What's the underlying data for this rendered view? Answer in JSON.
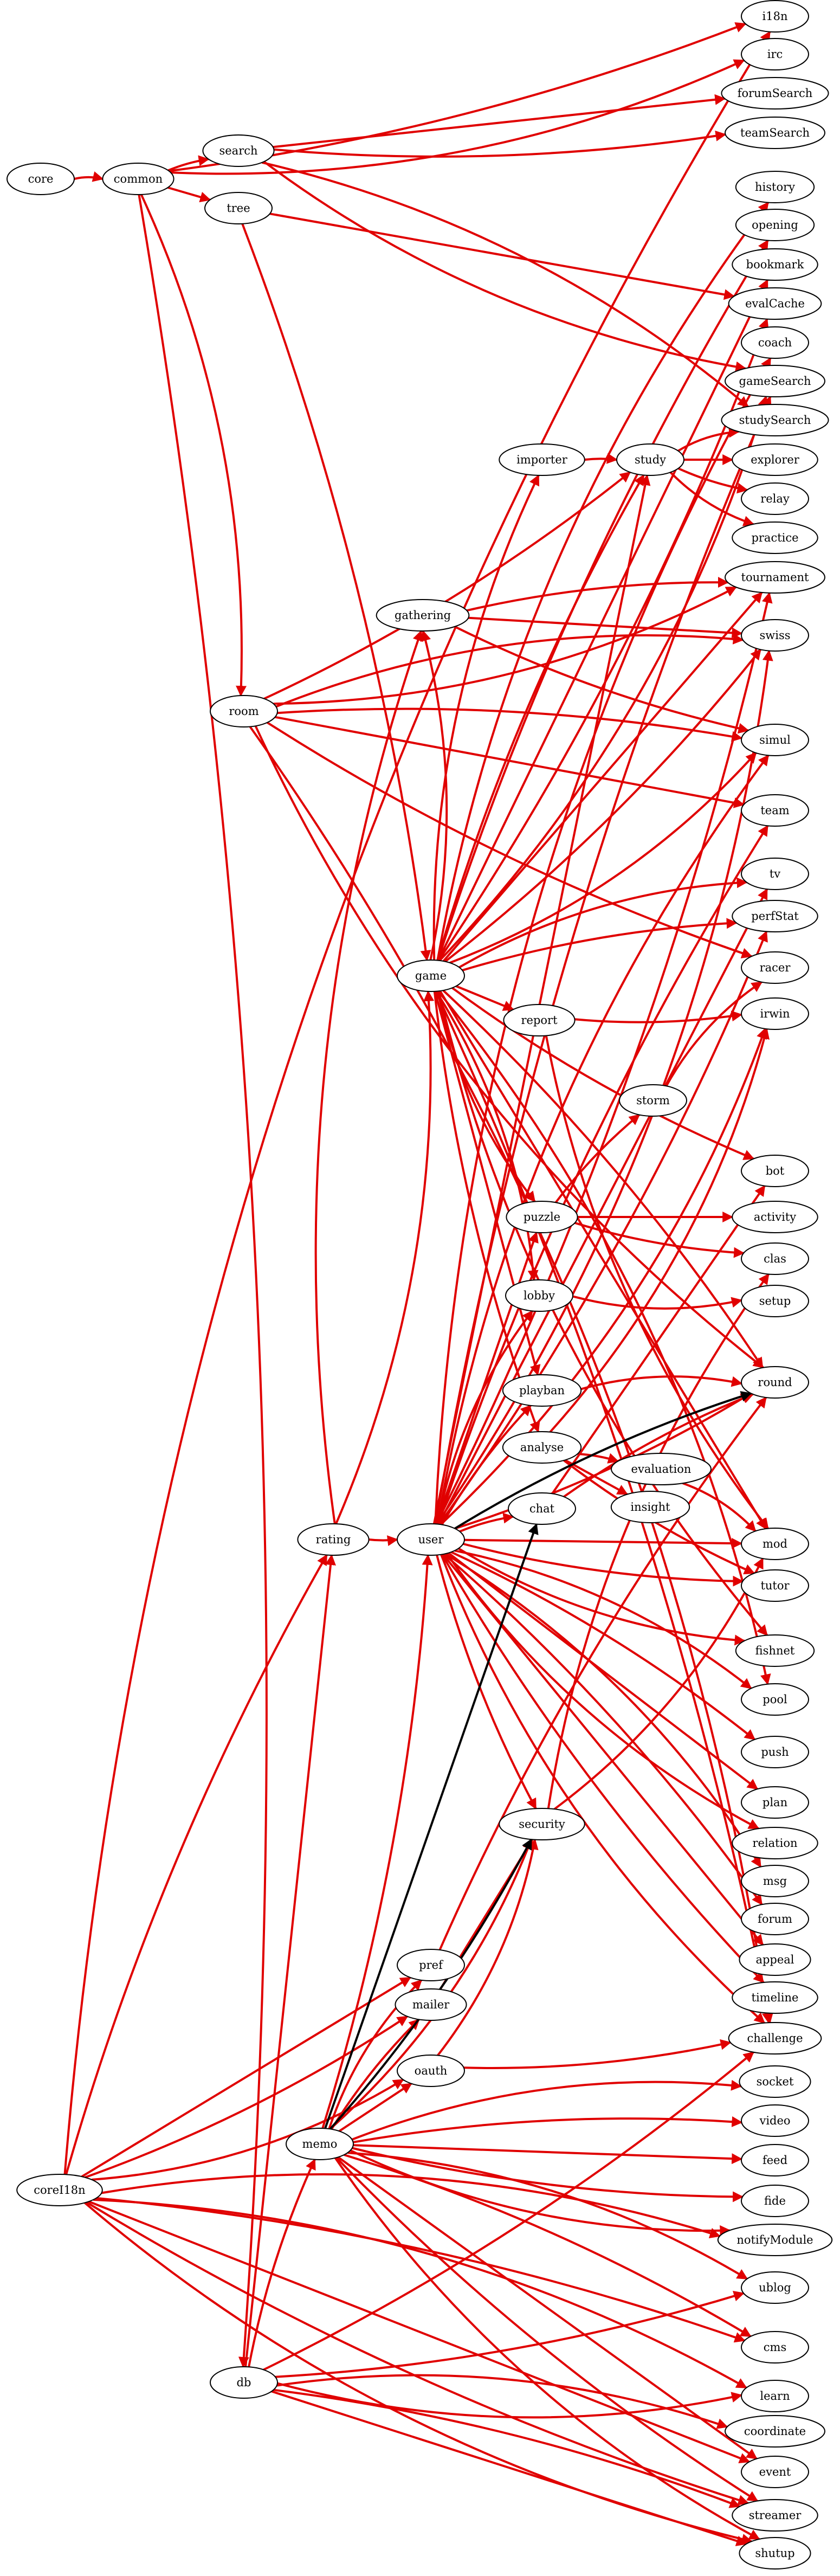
{
  "colors": {
    "dep_edge": "#e00000",
    "plain_edge": "#000000",
    "node_stroke": "#000000",
    "node_fill": "#ffffff"
  },
  "nodes": [
    {
      "id": "core",
      "label": "core"
    },
    {
      "id": "common",
      "label": "common"
    },
    {
      "id": "search",
      "label": "search"
    },
    {
      "id": "tree",
      "label": "tree"
    },
    {
      "id": "i18n",
      "label": "i18n"
    },
    {
      "id": "irc",
      "label": "irc"
    },
    {
      "id": "forumSearch",
      "label": "forumSearch"
    },
    {
      "id": "teamSearch",
      "label": "teamSearch"
    },
    {
      "id": "history",
      "label": "history"
    },
    {
      "id": "opening",
      "label": "opening"
    },
    {
      "id": "bookmark",
      "label": "bookmark"
    },
    {
      "id": "evalCache",
      "label": "evalCache"
    },
    {
      "id": "coach",
      "label": "coach"
    },
    {
      "id": "gameSearch",
      "label": "gameSearch"
    },
    {
      "id": "studySearch",
      "label": "studySearch"
    },
    {
      "id": "explorer",
      "label": "explorer"
    },
    {
      "id": "relay",
      "label": "relay"
    },
    {
      "id": "practice",
      "label": "practice"
    },
    {
      "id": "importer",
      "label": "importer"
    },
    {
      "id": "study",
      "label": "study"
    },
    {
      "id": "tournament",
      "label": "tournament"
    },
    {
      "id": "gathering",
      "label": "gathering"
    },
    {
      "id": "swiss",
      "label": "swiss"
    },
    {
      "id": "room",
      "label": "room"
    },
    {
      "id": "simul",
      "label": "simul"
    },
    {
      "id": "team",
      "label": "team"
    },
    {
      "id": "tv",
      "label": "tv"
    },
    {
      "id": "perfStat",
      "label": "perfStat"
    },
    {
      "id": "game",
      "label": "game"
    },
    {
      "id": "racer",
      "label": "racer"
    },
    {
      "id": "report",
      "label": "report"
    },
    {
      "id": "irwin",
      "label": "irwin"
    },
    {
      "id": "storm",
      "label": "storm"
    },
    {
      "id": "bot",
      "label": "bot"
    },
    {
      "id": "puzzle",
      "label": "puzzle"
    },
    {
      "id": "activity",
      "label": "activity"
    },
    {
      "id": "clas",
      "label": "clas"
    },
    {
      "id": "lobby",
      "label": "lobby"
    },
    {
      "id": "setup",
      "label": "setup"
    },
    {
      "id": "round",
      "label": "round"
    },
    {
      "id": "playban",
      "label": "playban"
    },
    {
      "id": "analyse",
      "label": "analyse"
    },
    {
      "id": "evaluation",
      "label": "evaluation"
    },
    {
      "id": "insight",
      "label": "insight"
    },
    {
      "id": "chat",
      "label": "chat"
    },
    {
      "id": "rating",
      "label": "rating"
    },
    {
      "id": "user",
      "label": "user"
    },
    {
      "id": "mod",
      "label": "mod"
    },
    {
      "id": "tutor",
      "label": "tutor"
    },
    {
      "id": "fishnet",
      "label": "fishnet"
    },
    {
      "id": "pool",
      "label": "pool"
    },
    {
      "id": "push",
      "label": "push"
    },
    {
      "id": "plan",
      "label": "plan"
    },
    {
      "id": "security",
      "label": "security"
    },
    {
      "id": "relation",
      "label": "relation"
    },
    {
      "id": "msg",
      "label": "msg"
    },
    {
      "id": "forum",
      "label": "forum"
    },
    {
      "id": "pref",
      "label": "pref"
    },
    {
      "id": "appeal",
      "label": "appeal"
    },
    {
      "id": "mailer",
      "label": "mailer"
    },
    {
      "id": "timeline",
      "label": "timeline"
    },
    {
      "id": "challenge",
      "label": "challenge"
    },
    {
      "id": "oauth",
      "label": "oauth"
    },
    {
      "id": "socket",
      "label": "socket"
    },
    {
      "id": "video",
      "label": "video"
    },
    {
      "id": "memo",
      "label": "memo"
    },
    {
      "id": "feed",
      "label": "feed"
    },
    {
      "id": "coreI18n",
      "label": "coreI18n"
    },
    {
      "id": "fide",
      "label": "fide"
    },
    {
      "id": "notifyModule",
      "label": "notifyModule"
    },
    {
      "id": "ublog",
      "label": "ublog"
    },
    {
      "id": "cms",
      "label": "cms"
    },
    {
      "id": "db",
      "label": "db"
    },
    {
      "id": "learn",
      "label": "learn"
    },
    {
      "id": "coordinate",
      "label": "coordinate"
    },
    {
      "id": "event",
      "label": "event"
    },
    {
      "id": "streamer",
      "label": "streamer"
    },
    {
      "id": "shutup",
      "label": "shutup"
    }
  ],
  "edges": [
    [
      "core",
      "common"
    ],
    [
      "common",
      "search"
    ],
    [
      "common",
      "tree"
    ],
    [
      "common",
      "i18n"
    ],
    [
      "common",
      "irc"
    ],
    [
      "common",
      "room"
    ],
    [
      "common",
      "db"
    ],
    [
      "search",
      "forumSearch"
    ],
    [
      "search",
      "teamSearch"
    ],
    [
      "search",
      "gameSearch"
    ],
    [
      "search",
      "studySearch"
    ],
    [
      "tree",
      "game"
    ],
    [
      "tree",
      "evalCache"
    ],
    [
      "room",
      "study"
    ],
    [
      "room",
      "tournament"
    ],
    [
      "room",
      "swiss"
    ],
    [
      "room",
      "simul"
    ],
    [
      "room",
      "team"
    ],
    [
      "room",
      "racer"
    ],
    [
      "room",
      "round"
    ],
    [
      "room",
      "challenge"
    ],
    [
      "importer",
      "study"
    ],
    [
      "study",
      "explorer"
    ],
    [
      "study",
      "relay"
    ],
    [
      "study",
      "practice"
    ],
    [
      "study",
      "studySearch"
    ],
    [
      "gathering",
      "tournament"
    ],
    [
      "gathering",
      "swiss"
    ],
    [
      "gathering",
      "simul"
    ],
    [
      "game",
      "gathering"
    ],
    [
      "game",
      "history"
    ],
    [
      "game",
      "opening"
    ],
    [
      "game",
      "bookmark"
    ],
    [
      "game",
      "evalCache"
    ],
    [
      "game",
      "gameSearch"
    ],
    [
      "game",
      "importer"
    ],
    [
      "game",
      "study"
    ],
    [
      "game",
      "tournament"
    ],
    [
      "game",
      "swiss"
    ],
    [
      "game",
      "simul"
    ],
    [
      "game",
      "tv"
    ],
    [
      "game",
      "perfStat"
    ],
    [
      "game",
      "report"
    ],
    [
      "game",
      "bot"
    ],
    [
      "game",
      "puzzle"
    ],
    [
      "game",
      "lobby"
    ],
    [
      "game",
      "round"
    ],
    [
      "game",
      "playban"
    ],
    [
      "game",
      "analyse"
    ],
    [
      "game",
      "fishnet"
    ],
    [
      "game",
      "pool"
    ],
    [
      "game",
      "challenge"
    ],
    [
      "game",
      "mod"
    ],
    [
      "report",
      "irwin"
    ],
    [
      "report",
      "mod"
    ],
    [
      "storm",
      "racer"
    ],
    [
      "puzzle",
      "storm"
    ],
    [
      "puzzle",
      "activity"
    ],
    [
      "puzzle",
      "clas"
    ],
    [
      "lobby",
      "setup"
    ],
    [
      "playban",
      "round"
    ],
    [
      "analyse",
      "evaluation"
    ],
    [
      "analyse",
      "insight"
    ],
    [
      "analyse",
      "tutor"
    ],
    [
      "analyse",
      "irwin"
    ],
    [
      "evaluation",
      "mod"
    ],
    [
      "chat",
      "round"
    ],
    [
      "chat",
      "bot"
    ],
    [
      "rating",
      "user"
    ],
    [
      "rating",
      "game"
    ],
    [
      "rating",
      "gathering"
    ],
    [
      "user",
      "chat"
    ],
    [
      "user",
      "mod"
    ],
    [
      "user",
      "tutor"
    ],
    [
      "user",
      "fishnet"
    ],
    [
      "user",
      "pool"
    ],
    [
      "user",
      "push"
    ],
    [
      "user",
      "plan"
    ],
    [
      "user",
      "security"
    ],
    [
      "user",
      "relation"
    ],
    [
      "user",
      "msg"
    ],
    [
      "user",
      "forum"
    ],
    [
      "user",
      "appeal"
    ],
    [
      "user",
      "timeline"
    ],
    [
      "user",
      "challenge"
    ],
    [
      "user",
      "coach"
    ],
    [
      "user",
      "gameSearch"
    ],
    [
      "user",
      "study"
    ],
    [
      "user",
      "tournament"
    ],
    [
      "user",
      "swiss"
    ],
    [
      "user",
      "simul"
    ],
    [
      "user",
      "team"
    ],
    [
      "user",
      "tv"
    ],
    [
      "user",
      "perfStat"
    ],
    [
      "user",
      "irwin"
    ],
    [
      "user",
      "lobby"
    ],
    [
      "user",
      "playban"
    ],
    [
      "user",
      "puzzle"
    ],
    [
      "user",
      "round"
    ],
    [
      "security",
      "mod"
    ],
    [
      "security",
      "clas"
    ],
    [
      "pref",
      "round"
    ],
    [
      "mailer",
      "security"
    ],
    [
      "oauth",
      "challenge"
    ],
    [
      "oauth",
      "security"
    ],
    [
      "memo",
      "socket"
    ],
    [
      "memo",
      "video"
    ],
    [
      "memo",
      "feed"
    ],
    [
      "memo",
      "fide"
    ],
    [
      "memo",
      "notifyModule"
    ],
    [
      "memo",
      "ublog"
    ],
    [
      "memo",
      "cms"
    ],
    [
      "memo",
      "event"
    ],
    [
      "memo",
      "streamer"
    ],
    [
      "memo",
      "shutup"
    ],
    [
      "memo",
      "pref"
    ],
    [
      "memo",
      "mailer"
    ],
    [
      "memo",
      "oauth"
    ],
    [
      "memo",
      "user"
    ],
    [
      "memo",
      "security"
    ],
    [
      "coreI18n",
      "i18n"
    ],
    [
      "coreI18n",
      "rating"
    ],
    [
      "coreI18n",
      "pref"
    ],
    [
      "coreI18n",
      "mailer"
    ],
    [
      "coreI18n",
      "oauth"
    ],
    [
      "coreI18n",
      "notifyModule"
    ],
    [
      "coreI18n",
      "cms"
    ],
    [
      "coreI18n",
      "event"
    ],
    [
      "coreI18n",
      "streamer"
    ],
    [
      "coreI18n",
      "shutup"
    ],
    [
      "coreI18n",
      "learn"
    ],
    [
      "db",
      "memo"
    ],
    [
      "db",
      "rating"
    ],
    [
      "db",
      "ublog"
    ],
    [
      "db",
      "learn"
    ],
    [
      "db",
      "coordinate"
    ],
    [
      "db",
      "streamer"
    ],
    [
      "db",
      "shutup"
    ],
    [
      "db",
      "challenge"
    ]
  ],
  "plain_edges": [
    [
      "user",
      "round"
    ],
    [
      "memo",
      "chat"
    ],
    [
      "memo",
      "security"
    ]
  ]
}
